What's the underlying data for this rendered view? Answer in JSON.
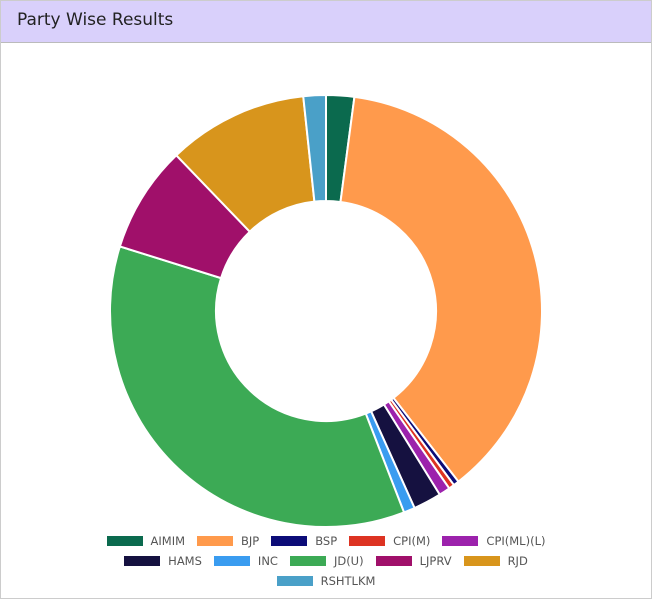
{
  "title": "Party Wise Results",
  "chart_data": {
    "type": "donut",
    "categories": [
      "AIMIM",
      "BJP",
      "BSP",
      "CPI(M)",
      "CPI(ML)(L)",
      "HAMS",
      "INC",
      "JD(U)",
      "LJPRV",
      "RJD",
      "RSHTLKM"
    ],
    "series": [
      {
        "values": [
          5,
          89,
          1,
          1,
          2,
          5,
          2,
          85,
          19,
          25,
          4
        ],
        "colors": [
          "#0b6a4e",
          "#ff9a4c",
          "#0c0c78",
          "#dd3322",
          "#9c22ac",
          "#151140",
          "#3a9cf0",
          "#3caa55",
          "#a0106a",
          "#d8951c",
          "#4aa0c8"
        ]
      }
    ]
  }
}
